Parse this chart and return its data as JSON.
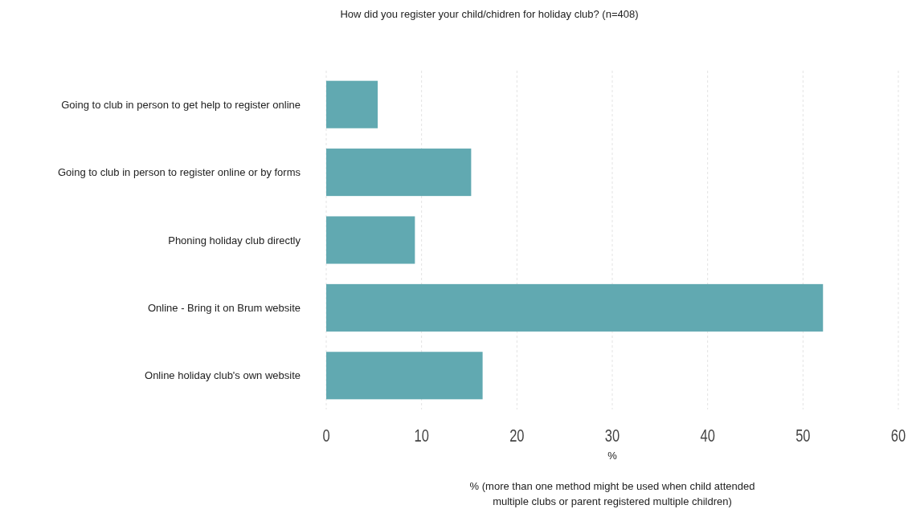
{
  "chart_data": {
    "type": "bar",
    "orientation": "horizontal",
    "title": "How did you register your child/chidren for holiday club? (n=408)",
    "categories": [
      "Going to club in person to get help to register online",
      "Going to club in person to register online or by forms",
      "Phoning holiday club directly",
      "Online - Bring it on Brum website",
      "Online holiday club's own website"
    ],
    "values": [
      5.4,
      15.2,
      9.3,
      52.1,
      16.4
    ],
    "color": "#61a9b1",
    "xlim": [
      0,
      60
    ],
    "xticks": [
      0,
      10,
      20,
      30,
      40,
      50,
      60
    ],
    "grid": "x",
    "xlabel": "%",
    "annotations": [
      "% (more than one method might be used when child attended multiple clubs or parent registered multiple children)"
    ]
  }
}
